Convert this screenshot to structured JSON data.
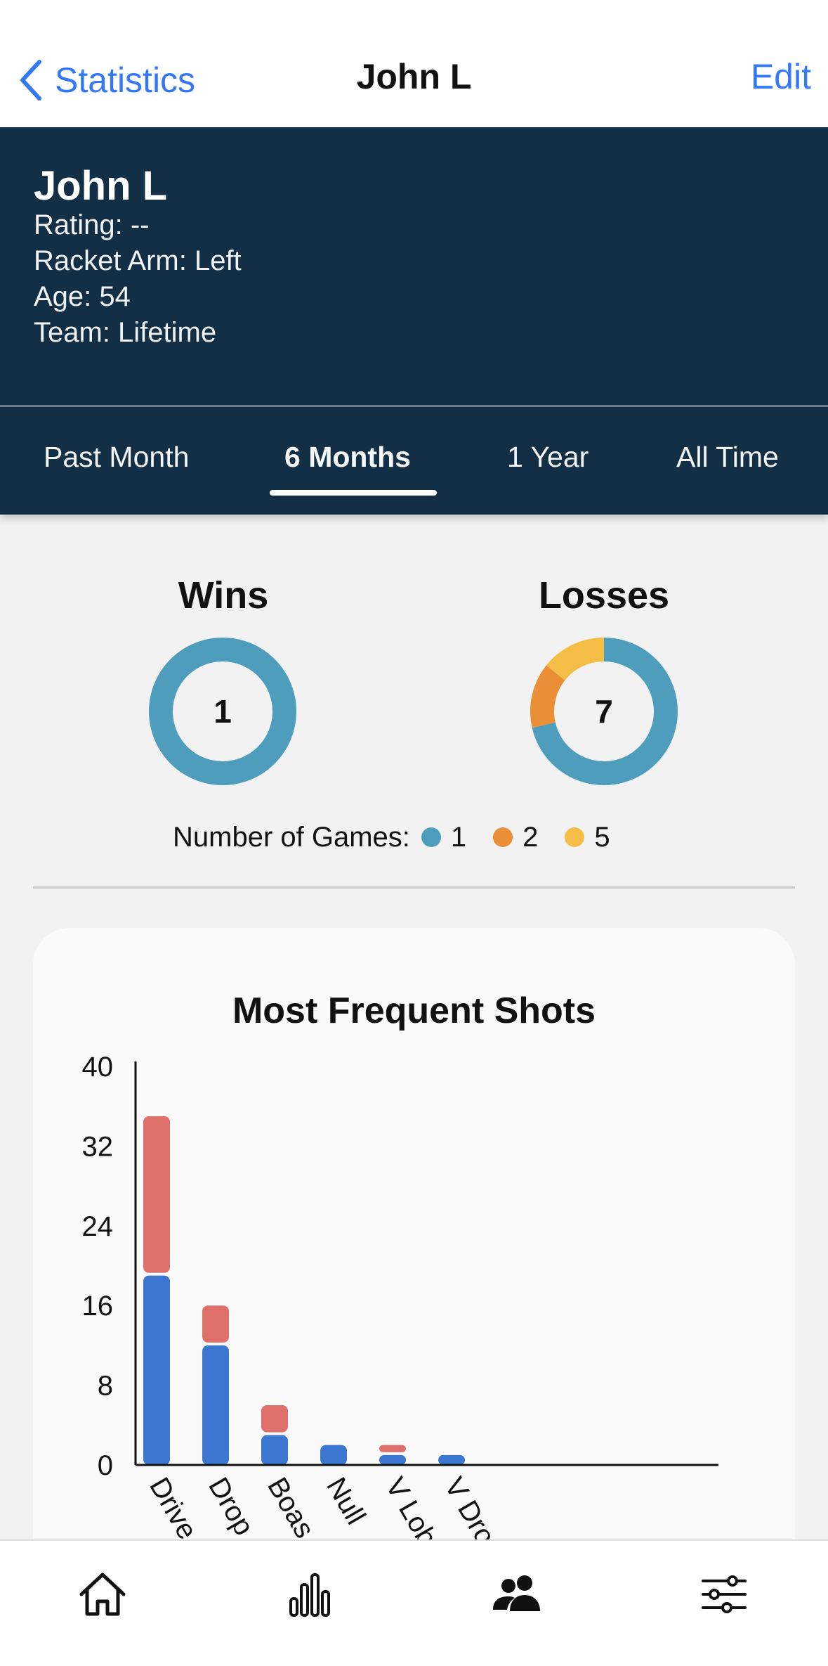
{
  "nav": {
    "back_label": "Statistics",
    "title": "John L",
    "edit_label": "Edit",
    "back_icon": "chevron-left-icon"
  },
  "profile": {
    "name": "John L",
    "rating": "Rating: --",
    "racket_arm": "Racket Arm: Left",
    "age": "Age: 54",
    "team": "Team: Lifetime"
  },
  "tabs": [
    {
      "label": "Past Month",
      "active": false
    },
    {
      "label": "6 Months",
      "active": true
    },
    {
      "label": "1 Year",
      "active": false
    },
    {
      "label": "All Time",
      "active": false
    }
  ],
  "wins": {
    "title": "Wins",
    "total": "1",
    "segments": [
      {
        "games": 1,
        "count": 1,
        "color": "#4e9dbd"
      }
    ]
  },
  "losses": {
    "title": "Losses",
    "total": "7",
    "segments": [
      {
        "games": 1,
        "count": 5,
        "color": "#4e9dbd"
      },
      {
        "games": 2,
        "count": 1,
        "color": "#ea8f35"
      },
      {
        "games": 5,
        "count": 1,
        "color": "#f4bd45"
      }
    ]
  },
  "legend": {
    "label": "Number of Games:",
    "items": [
      {
        "label": "1",
        "color": "#4e9dbd"
      },
      {
        "label": "2",
        "color": "#ea8f35"
      },
      {
        "label": "5",
        "color": "#f4bd45"
      }
    ]
  },
  "chart_card": {
    "title": "Most Frequent Shots"
  },
  "chart_data": {
    "type": "bar",
    "stacked": true,
    "title": "Most Frequent Shots",
    "categories": [
      "Drive",
      "Drop",
      "Boast",
      "Null",
      "V Lob",
      "V Drop"
    ],
    "tick_labels": [
      "Drive",
      "Drop",
      "Boas",
      "Null",
      "V Lob",
      "V Dro"
    ],
    "series": [
      {
        "values": [
          19,
          12,
          3,
          2,
          1,
          1
        ],
        "color": "#3b76d0"
      },
      {
        "values": [
          16,
          4,
          3,
          0,
          1,
          0
        ],
        "color": "#df6f6b"
      }
    ],
    "ylim": [
      0,
      40
    ],
    "yticks": [
      0,
      8,
      16,
      24,
      32,
      40
    ],
    "xlabel": "",
    "ylabel": ""
  },
  "tabbar": [
    {
      "icon": "home-icon",
      "active": false
    },
    {
      "icon": "bar-chart-icon",
      "active": false
    },
    {
      "icon": "people-icon",
      "active": true
    },
    {
      "icon": "sliders-icon",
      "active": false
    }
  ]
}
